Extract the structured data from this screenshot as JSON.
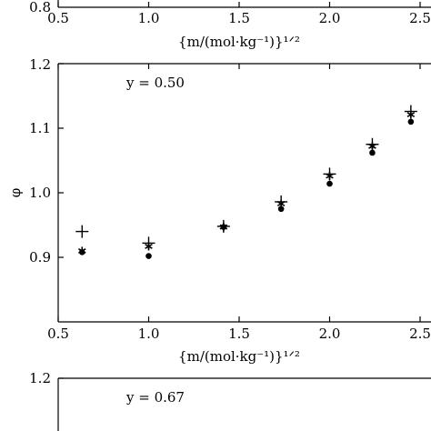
{
  "chart_data": [
    {
      "type": "scatter",
      "panel": "top (partial)",
      "x_ticks": [
        "0.5",
        "1.0",
        "1.5",
        "2.0",
        "2.5"
      ],
      "y_ticks": [
        "0.8"
      ],
      "xlabel": "{m/(mol·kg⁻¹)}¹ᐟ²",
      "xlim": [
        0.5,
        2.5
      ]
    },
    {
      "type": "scatter",
      "panel": "middle",
      "annotation": "y = 0.50",
      "xlabel": "{m/(mol·kg⁻¹)}¹ᐟ²",
      "ylabel": "φ",
      "xlim": [
        0.5,
        2.5
      ],
      "ylim": [
        0.8,
        1.2
      ],
      "x_ticks": [
        "0.5",
        "1.0",
        "1.5",
        "2.0",
        "2.5"
      ],
      "y_ticks": [
        "0.9",
        "1.0",
        "1.1",
        "1.2"
      ],
      "x_tick_values": [
        0.5,
        1.0,
        1.5,
        2.0,
        2.5
      ],
      "y_tick_values": [
        0.9,
        1.0,
        1.1,
        1.2
      ],
      "series": [
        {
          "marker": "plus",
          "x": [
            0.632,
            1.0,
            1.414,
            1.732,
            2.0,
            2.236,
            2.449
          ],
          "y": [
            0.94,
            0.922,
            0.948,
            0.986,
            1.029,
            1.075,
            1.126
          ]
        },
        {
          "marker": "star",
          "x": [
            0.632,
            1.0,
            1.414,
            1.732,
            2.0,
            2.236,
            2.449
          ],
          "y": [
            0.91,
            0.917,
            0.947,
            0.983,
            1.026,
            1.072,
            1.121
          ]
        },
        {
          "marker": "dot",
          "x": [
            0.632,
            1.0,
            1.414,
            1.732,
            2.0,
            2.236,
            2.449
          ],
          "y": [
            0.908,
            0.902,
            0.947,
            0.975,
            1.014,
            1.062,
            1.11
          ]
        }
      ]
    },
    {
      "type": "scatter",
      "panel": "bottom (partial)",
      "annotation": "y = 0.67",
      "y_ticks": [
        "1.2"
      ]
    }
  ]
}
